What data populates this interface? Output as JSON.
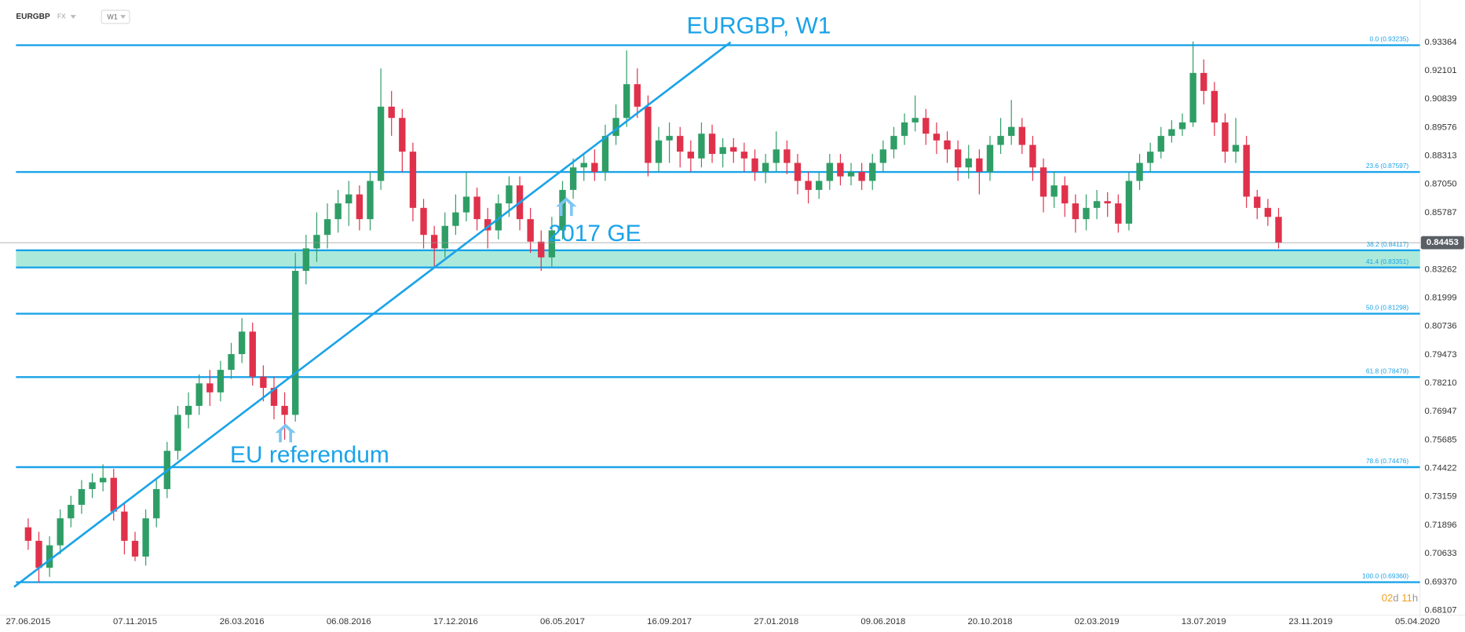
{
  "header": {
    "symbol": "EURGBP",
    "market": "FX",
    "interval": "W1"
  },
  "chart_data": {
    "type": "candlestick",
    "title": "EURGBP, W1",
    "annotations": [
      {
        "text": "2017 GE"
      },
      {
        "text": "EU referendum"
      }
    ],
    "countdown": [
      "02",
      "d",
      "11",
      "h"
    ],
    "up_color": "#2f9e66",
    "down_color": "#e0314b",
    "line_color": "#1aa3e8",
    "zone_color": "#8fe3cf",
    "ylim": [
      0.67898,
      0.94616
    ],
    "yticks": [
      0.93364,
      0.92101,
      0.90839,
      0.89576,
      0.88313,
      {
        "value": 0.8705,
        "label": "0.87050"
      },
      0.85787,
      0.83262,
      0.81999,
      0.80736,
      0.79473,
      {
        "value": 0.7821,
        "label": "0.78210"
      },
      0.76947,
      0.75685,
      0.74422,
      0.73159,
      0.71896,
      0.70633,
      {
        "value": 0.6937,
        "label": "0.69370"
      },
      0.68107
    ],
    "fib_levels": [
      {
        "label": "0.0 (0.93235)",
        "value": 0.93235
      },
      {
        "label": "23.6 (0.87597)",
        "value": 0.87597
      },
      {
        "label": "38.2 (0.84117)",
        "value": 0.84117
      },
      {
        "label": "41.4 (0.83351)",
        "value": 0.83351
      },
      {
        "label": "50.0 (0.81298)",
        "value": 0.81298
      },
      {
        "label": "61.8 (0.78479)",
        "value": 0.78479
      },
      {
        "label": "78.6 (0.74476)",
        "value": 0.74476
      },
      {
        "label": "100.0 (0.69360)",
        "value": 0.6936
      }
    ],
    "categories": [
      "27.06.2015",
      null,
      null,
      null,
      null,
      null,
      null,
      null,
      null,
      null,
      "07.11.2015",
      null,
      null,
      null,
      null,
      null,
      null,
      null,
      null,
      null,
      "26.03.2016",
      null,
      null,
      null,
      null,
      null,
      null,
      null,
      null,
      null,
      "06.08.2016",
      null,
      null,
      null,
      null,
      null,
      null,
      null,
      null,
      null,
      "17.12.2016",
      null,
      null,
      null,
      null,
      null,
      null,
      null,
      null,
      null,
      "06.05.2017",
      null,
      null,
      null,
      null,
      null,
      null,
      null,
      null,
      null,
      "16.09.2017",
      null,
      null,
      null,
      null,
      null,
      null,
      null,
      null,
      null,
      "27.01.2018",
      null,
      null,
      null,
      null,
      null,
      null,
      null,
      null,
      null,
      "09.06.2018",
      null,
      null,
      null,
      null,
      null,
      null,
      null,
      null,
      null,
      "20.10.2018",
      null,
      null,
      null,
      null,
      null,
      null,
      null,
      null,
      null,
      "02.03.2019",
      null,
      null,
      null,
      null,
      null,
      null,
      null,
      null,
      null,
      "13.07.2019",
      null,
      null,
      null,
      null,
      null,
      null,
      null,
      null,
      null,
      "23.11.2019",
      null,
      null,
      null,
      null,
      null,
      null,
      null,
      null,
      null,
      "05.04.2020"
    ],
    "open": [
      0.718,
      0.712,
      0.7,
      0.71,
      0.722,
      0.728,
      0.735,
      0.738,
      0.74,
      0.725,
      0.712,
      0.705,
      0.722,
      0.735,
      0.752,
      0.768,
      0.772,
      0.782,
      0.778,
      0.788,
      0.795,
      0.805,
      0.785,
      0.78,
      0.772,
      0.768,
      0.832,
      0.842,
      0.848,
      0.855,
      0.862,
      0.866,
      0.855,
      0.872,
      0.905,
      0.9,
      0.885,
      0.86,
      0.848,
      0.842,
      0.852,
      0.858,
      0.865,
      0.855,
      0.85,
      0.862,
      0.87,
      0.855,
      0.845,
      0.838,
      0.85,
      0.868,
      0.878,
      0.88,
      0.876,
      0.892,
      0.9,
      0.915,
      0.905,
      0.88,
      0.89,
      0.892,
      0.885,
      0.882,
      0.893,
      0.884,
      0.887,
      0.885,
      0.882,
      0.876,
      0.88,
      0.886,
      0.88,
      0.872,
      0.868,
      0.872,
      0.88,
      0.874,
      0.876,
      0.872,
      0.88,
      0.886,
      0.892,
      0.898,
      0.9,
      0.893,
      0.89,
      0.886,
      0.878,
      0.882,
      0.876,
      0.888,
      0.892,
      0.896,
      0.888,
      0.878,
      0.865,
      0.87,
      0.862,
      0.855,
      0.86,
      0.863,
      0.862,
      0.853,
      0.872,
      0.88,
      0.885,
      0.892,
      0.895,
      0.898,
      0.92,
      0.912,
      0.898,
      0.885,
      0.888,
      0.865,
      0.86,
      0.856,
      null,
      null,
      null,
      null,
      null,
      null,
      null,
      null,
      null,
      null,
      null,
      null,
      null
    ],
    "high": [
      0.722,
      0.716,
      0.714,
      0.726,
      0.732,
      0.739,
      0.742,
      0.746,
      0.744,
      0.729,
      0.716,
      0.726,
      0.739,
      0.756,
      0.772,
      0.778,
      0.786,
      0.788,
      0.792,
      0.8,
      0.811,
      0.809,
      0.79,
      0.785,
      0.778,
      0.84,
      0.848,
      0.858,
      0.862,
      0.868,
      0.872,
      0.87,
      0.876,
      0.922,
      0.912,
      0.904,
      0.889,
      0.864,
      0.852,
      0.858,
      0.866,
      0.876,
      0.869,
      0.86,
      0.866,
      0.874,
      0.874,
      0.86,
      0.85,
      0.856,
      0.872,
      0.882,
      0.884,
      0.886,
      0.897,
      0.906,
      0.93,
      0.922,
      0.91,
      0.896,
      0.898,
      0.896,
      0.89,
      0.898,
      0.897,
      0.891,
      0.891,
      0.889,
      0.886,
      0.884,
      0.894,
      0.89,
      0.884,
      0.876,
      0.876,
      0.884,
      0.884,
      0.88,
      0.88,
      0.884,
      0.89,
      0.896,
      0.902,
      0.91,
      0.904,
      0.898,
      0.894,
      0.89,
      0.888,
      0.886,
      0.892,
      0.9,
      0.908,
      0.9,
      0.892,
      0.882,
      0.876,
      0.874,
      0.866,
      0.866,
      0.868,
      0.867,
      0.866,
      0.876,
      0.884,
      0.889,
      0.896,
      0.899,
      0.902,
      0.934,
      0.926,
      0.916,
      0.902,
      0.9,
      0.892,
      0.868,
      0.864,
      0.86,
      null,
      null,
      null,
      null,
      null,
      null,
      null,
      null,
      null,
      null,
      null,
      null,
      null
    ],
    "low": [
      0.708,
      0.6936,
      0.696,
      0.706,
      0.718,
      0.724,
      0.731,
      0.734,
      0.721,
      0.706,
      0.703,
      0.701,
      0.718,
      0.731,
      0.748,
      0.762,
      0.768,
      0.772,
      0.774,
      0.784,
      0.791,
      0.781,
      0.774,
      0.766,
      0.757,
      0.765,
      0.826,
      0.836,
      0.842,
      0.849,
      0.852,
      0.85,
      0.85,
      0.868,
      0.892,
      0.876,
      0.854,
      0.842,
      0.834,
      0.838,
      0.848,
      0.854,
      0.85,
      0.842,
      0.846,
      0.856,
      0.85,
      0.84,
      0.832,
      0.834,
      0.846,
      0.864,
      0.872,
      0.872,
      0.872,
      0.888,
      0.896,
      0.9,
      0.874,
      0.876,
      0.88,
      0.878,
      0.876,
      0.878,
      0.88,
      0.878,
      0.88,
      0.876,
      0.872,
      0.871,
      0.876,
      0.875,
      0.866,
      0.862,
      0.864,
      0.868,
      0.87,
      0.87,
      0.868,
      0.868,
      0.876,
      0.882,
      0.888,
      0.894,
      0.888,
      0.884,
      0.88,
      0.872,
      0.873,
      0.866,
      0.872,
      0.884,
      0.888,
      0.884,
      0.872,
      0.858,
      0.86,
      0.856,
      0.849,
      0.85,
      0.855,
      0.856,
      0.849,
      0.85,
      0.868,
      0.876,
      0.882,
      0.889,
      0.892,
      0.896,
      0.906,
      0.892,
      0.88,
      0.88,
      0.86,
      0.855,
      0.852,
      0.842,
      null,
      null,
      null,
      null,
      null,
      null,
      null,
      null,
      null,
      null,
      null,
      null,
      null
    ],
    "close": [
      0.712,
      0.7,
      0.71,
      0.722,
      0.728,
      0.735,
      0.738,
      0.74,
      0.725,
      0.712,
      0.705,
      0.722,
      0.735,
      0.752,
      0.768,
      0.772,
      0.782,
      0.778,
      0.788,
      0.795,
      0.805,
      0.785,
      0.78,
      0.772,
      0.768,
      0.832,
      0.842,
      0.848,
      0.855,
      0.862,
      0.866,
      0.855,
      0.872,
      0.905,
      0.9,
      0.885,
      0.86,
      0.848,
      0.842,
      0.852,
      0.858,
      0.865,
      0.855,
      0.85,
      0.862,
      0.87,
      0.855,
      0.845,
      0.838,
      0.85,
      0.868,
      0.878,
      0.88,
      0.876,
      0.892,
      0.9,
      0.915,
      0.905,
      0.88,
      0.89,
      0.892,
      0.885,
      0.882,
      0.893,
      0.884,
      0.887,
      0.885,
      0.882,
      0.876,
      0.88,
      0.886,
      0.88,
      0.872,
      0.868,
      0.872,
      0.88,
      0.874,
      0.876,
      0.872,
      0.88,
      0.886,
      0.892,
      0.898,
      0.9,
      0.893,
      0.89,
      0.886,
      0.878,
      0.882,
      0.876,
      0.888,
      0.892,
      0.896,
      0.888,
      0.878,
      0.865,
      0.87,
      0.862,
      0.855,
      0.86,
      0.863,
      0.862,
      0.853,
      0.872,
      0.88,
      0.885,
      0.892,
      0.895,
      0.898,
      0.92,
      0.912,
      0.898,
      0.885,
      0.888,
      0.865,
      0.86,
      0.856,
      0.84453,
      null,
      null,
      null,
      null,
      null,
      null,
      null,
      null,
      null,
      null,
      null,
      null,
      null
    ]
  }
}
